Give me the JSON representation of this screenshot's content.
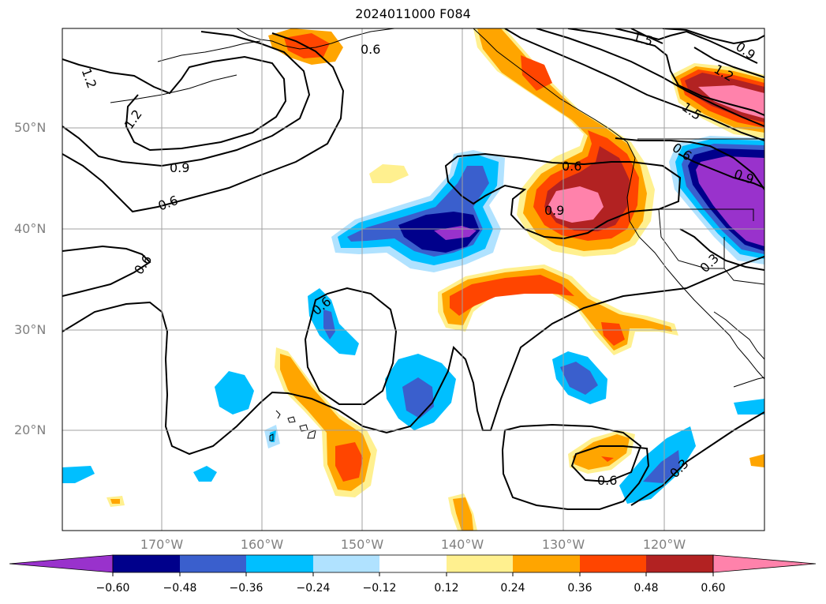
{
  "title": "2024011000 F084",
  "lat_labels": [
    "50°N",
    "40°N",
    "30°N",
    "20°N"
  ],
  "lon_labels": [
    "170°W",
    "160°W",
    "150°W",
    "140°W",
    "130°W",
    "120°W"
  ],
  "contour_labels": [
    "1.2",
    "1.2",
    "0.9",
    "0.6",
    "0.6",
    "0.6",
    "1.5",
    "0.9",
    "1.2",
    "1.5",
    "0.6",
    "0.9",
    "0.6",
    "0.9",
    "0.3",
    "0.6",
    "0.6",
    "0.3"
  ],
  "colorbar": {
    "colors": [
      "#9932cc",
      "#00008b",
      "#3a5fcd",
      "#00bfff",
      "#b0e2ff",
      "#ffffff",
      "#fff08f",
      "#ffa500",
      "#ff4500",
      "#b22222",
      "#ff82ab"
    ],
    "tick_labels": [
      "−0.60",
      "−0.48",
      "−0.36",
      "−0.24",
      "−0.12",
      "0.12",
      "0.24",
      "0.36",
      "0.48",
      "0.60"
    ]
  }
}
